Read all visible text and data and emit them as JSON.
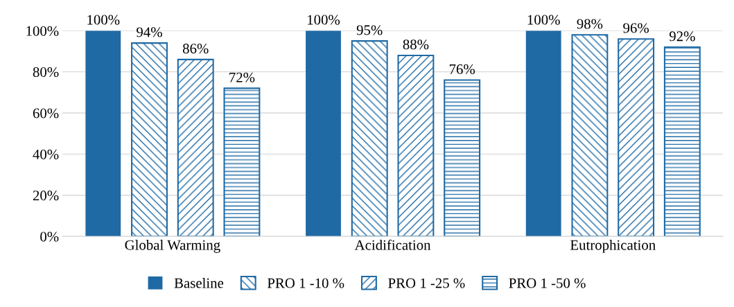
{
  "chart_data": {
    "type": "bar",
    "categories": [
      "Global Warming",
      "Acidification",
      "Eutrophication"
    ],
    "series": [
      {
        "name": "Baseline",
        "color": "#1f6aa5",
        "values": [
          100,
          100,
          100
        ],
        "value_labels": [
          "100%",
          "100%",
          "100%"
        ]
      },
      {
        "name": "PRO 1 -10 %",
        "color": "#1f6aa5",
        "values": [
          94,
          95,
          98
        ],
        "value_labels": [
          "94%",
          "95%",
          "98%"
        ]
      },
      {
        "name": "PRO 1 -25 %",
        "color": "#1f6aa5",
        "values": [
          86,
          88,
          96
        ],
        "value_labels": [
          "86%",
          "88%",
          "96%"
        ]
      },
      {
        "name": "PRO 1 -50 %",
        "color": "#1f6aa5",
        "values": [
          72,
          76,
          92
        ],
        "value_labels": [
          "72%",
          "76%",
          "92%"
        ]
      }
    ],
    "ylim": [
      0,
      100
    ],
    "yticks": [
      {
        "value": 0,
        "label": "0%"
      },
      {
        "value": 20,
        "label": "20%"
      },
      {
        "value": 40,
        "label": "40%"
      },
      {
        "value": 60,
        "label": "60%"
      },
      {
        "value": 80,
        "label": "80%"
      },
      {
        "value": 100,
        "label": "100%"
      }
    ],
    "grid": "y",
    "legend": "bottom"
  }
}
